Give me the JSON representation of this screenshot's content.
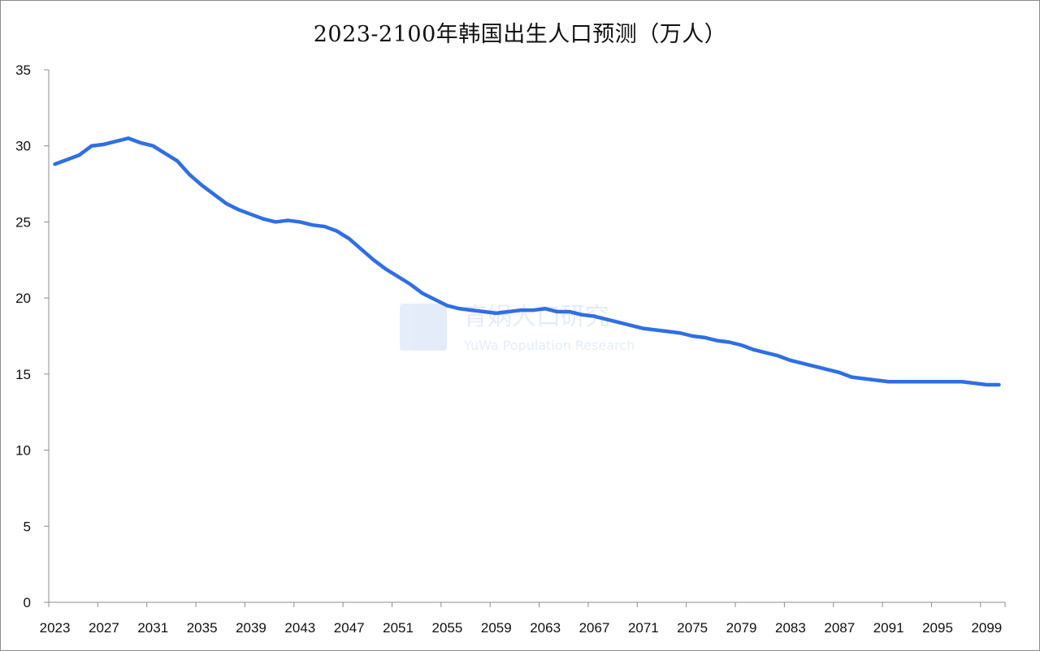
{
  "chart_data": {
    "type": "line",
    "title": "2023-2100年韩国出生人口预测（万人）",
    "xlabel": "",
    "ylabel": "",
    "ylim": [
      0,
      35
    ],
    "yticks": [
      0,
      5,
      10,
      15,
      20,
      25,
      30,
      35
    ],
    "xticks": [
      2023,
      2027,
      2031,
      2035,
      2039,
      2043,
      2047,
      2051,
      2055,
      2059,
      2063,
      2067,
      2071,
      2075,
      2079,
      2083,
      2087,
      2091,
      2095,
      2099
    ],
    "grid": false,
    "legend": "none",
    "series": [
      {
        "color": "#2f6fe4",
        "points": [
          [
            2023,
            28.8
          ],
          [
            2024,
            29.1
          ],
          [
            2025,
            29.4
          ],
          [
            2026,
            30.0
          ],
          [
            2027,
            30.1
          ],
          [
            2028,
            30.3
          ],
          [
            2029,
            30.5
          ],
          [
            2030,
            30.2
          ],
          [
            2031,
            30.0
          ],
          [
            2032,
            29.5
          ],
          [
            2033,
            29.0
          ],
          [
            2034,
            28.1
          ],
          [
            2035,
            27.4
          ],
          [
            2036,
            26.8
          ],
          [
            2037,
            26.2
          ],
          [
            2038,
            25.8
          ],
          [
            2039,
            25.5
          ],
          [
            2040,
            25.2
          ],
          [
            2041,
            25.0
          ],
          [
            2042,
            25.1
          ],
          [
            2043,
            25.0
          ],
          [
            2044,
            24.8
          ],
          [
            2045,
            24.7
          ],
          [
            2046,
            24.4
          ],
          [
            2047,
            23.9
          ],
          [
            2048,
            23.2
          ],
          [
            2049,
            22.5
          ],
          [
            2050,
            21.9
          ],
          [
            2051,
            21.4
          ],
          [
            2052,
            20.9
          ],
          [
            2053,
            20.3
          ],
          [
            2054,
            19.9
          ],
          [
            2055,
            19.5
          ],
          [
            2056,
            19.3
          ],
          [
            2057,
            19.2
          ],
          [
            2058,
            19.1
          ],
          [
            2059,
            19.0
          ],
          [
            2060,
            19.1
          ],
          [
            2061,
            19.2
          ],
          [
            2062,
            19.2
          ],
          [
            2063,
            19.3
          ],
          [
            2064,
            19.1
          ],
          [
            2065,
            19.1
          ],
          [
            2066,
            18.9
          ],
          [
            2067,
            18.8
          ],
          [
            2068,
            18.6
          ],
          [
            2069,
            18.4
          ],
          [
            2070,
            18.2
          ],
          [
            2071,
            18.0
          ],
          [
            2072,
            17.9
          ],
          [
            2073,
            17.8
          ],
          [
            2074,
            17.7
          ],
          [
            2075,
            17.5
          ],
          [
            2076,
            17.4
          ],
          [
            2077,
            17.2
          ],
          [
            2078,
            17.1
          ],
          [
            2079,
            16.9
          ],
          [
            2080,
            16.6
          ],
          [
            2081,
            16.4
          ],
          [
            2082,
            16.2
          ],
          [
            2083,
            15.9
          ],
          [
            2084,
            15.7
          ],
          [
            2085,
            15.5
          ],
          [
            2086,
            15.3
          ],
          [
            2087,
            15.1
          ],
          [
            2088,
            14.8
          ],
          [
            2089,
            14.7
          ],
          [
            2090,
            14.6
          ],
          [
            2091,
            14.5
          ],
          [
            2092,
            14.5
          ],
          [
            2093,
            14.5
          ],
          [
            2094,
            14.5
          ],
          [
            2095,
            14.5
          ],
          [
            2096,
            14.5
          ],
          [
            2097,
            14.5
          ],
          [
            2098,
            14.4
          ],
          [
            2099,
            14.3
          ],
          [
            2100,
            14.3
          ]
        ]
      }
    ]
  },
  "watermark": {
    "name": "育娲人口研究",
    "subtitle": "YuWa Population Research"
  }
}
